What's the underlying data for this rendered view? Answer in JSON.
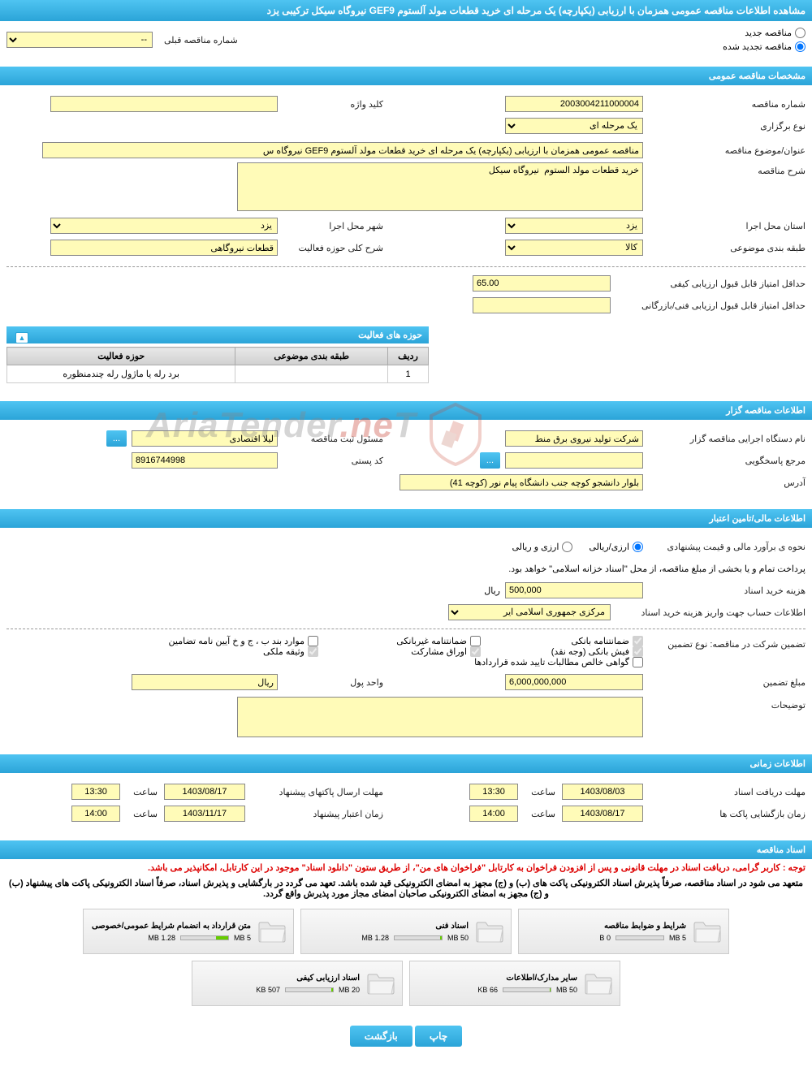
{
  "page_title": "مشاهده اطلاعات مناقصه عمومی همزمان با ارزیابی (یکپارچه) یک مرحله ای خرید قطعات مولد آلستوم GEF9 نیروگاه سیکل ترکیبی یزد",
  "top": {
    "radio_new": "مناقصه جدید",
    "radio_renewed": "مناقصه تجدید شده",
    "prev_number_label": "شماره مناقصه قبلی",
    "prev_number_value": "--"
  },
  "sections": {
    "general": "مشخصات مناقصه عمومی",
    "activities": "حوزه های فعالیت",
    "tenderer": "اطلاعات مناقصه گزار",
    "financial": "اطلاعات مالی/تامین اعتبار",
    "timing": "اطلاعات زمانی",
    "documents": "اسناد مناقصه"
  },
  "general": {
    "tender_number_label": "شماره مناقصه",
    "tender_number": "2003004211000004",
    "holding_type_label": "نوع برگزاری",
    "holding_type": "یک مرحله ای",
    "keyword_label": "کلید واژه",
    "keyword": "",
    "subject_label": "عنوان/موضوع مناقصه",
    "subject": "مناقصه عمومی همزمان با ارزیابی (یکپارچه) یک مرحله ای خرید قطعات مولد آلستوم GEF9 نیروگاه س",
    "description_label": "شرح مناقصه",
    "description": "خرید قطعات مولد الستوم  نیروگاه سیکل",
    "province_label": "استان محل اجرا",
    "province": "یزد",
    "city_label": "شهر محل اجرا",
    "city": "یزد",
    "category_label": "طبقه بندی موضوعی",
    "category": "کالا",
    "activity_scope_label": "شرح کلی حوزه فعالیت",
    "activity_scope": "قطعات نیروگاهی",
    "min_quality_label": "حداقل امتیاز قابل قبول ارزیابی کیفی",
    "min_quality": "65.00",
    "min_technical_label": "حداقل امتیاز قابل قبول ارزیابی فنی/بازرگانی",
    "min_technical": ""
  },
  "activities_table": {
    "col_row": "ردیف",
    "col_category": "طبقه بندی موضوعی",
    "col_scope": "حوزه فعالیت",
    "rows": [
      {
        "n": "1",
        "category": "",
        "scope": "برد رله یا ماژول رله چندمنظوره"
      }
    ]
  },
  "tenderer": {
    "executive_label": "نام دستگاه اجرایی مناقصه گزار",
    "executive": "شرکت تولید نیروی برق منط",
    "registrar_label": "مسئول ثبت مناقصه",
    "registrar": "لیلا اقتصادی",
    "response_ref_label": "مرجع پاسخگویی",
    "response_ref": "",
    "postal_label": "کد پستی",
    "postal": "8916744998",
    "ellipsis": "...",
    "address_label": "آدرس",
    "address": "بلوار دانشجو کوچه جنب دانشگاه پیام نور (کوچه 41)"
  },
  "financial": {
    "estimate_label": "نحوه ی برآورد مالی و قیمت پیشنهادی",
    "opt_rial": "ارزی/ریالی",
    "opt_arz": "ارزی و ریالی",
    "payment_note": "پرداخت تمام و یا بخشی از مبلغ مناقصه، از محل \"اسناد خزانه اسلامی\" خواهد بود.",
    "doc_price_label": "هزینه خرید اسناد",
    "doc_price": "500,000",
    "doc_price_unit": "ریال",
    "bank_info_label": "اطلاعات حساب جهت واریز هزینه خرید اسناد",
    "bank_info": "مرکزی جمهوری اسلامی ایر",
    "guarantee_type_label": "تضمین شرکت در مناقصه:   نوع تضمین",
    "cb_bank_guarantee": "ضمانتنامه بانکی",
    "cb_nonbank_guarantee": "ضمانتنامه غیربانکی",
    "cb_regulation": "موارد بند ب ، ج و خ آیین نامه تضامین",
    "cb_bank_slip": "فیش بانکی (وجه نقد)",
    "cb_bonds": "اوراق مشارکت",
    "cb_property": "وثیقه ملکی",
    "cb_contract": "گواهی خالص مطالبات تایید شده قراردادها",
    "guarantee_amount_label": "مبلغ تضمین",
    "guarantee_amount": "6,000,000,000",
    "currency_unit_label": "واحد پول",
    "currency_unit": "ریال",
    "notes_label": "توضیحات",
    "notes": ""
  },
  "timing": {
    "doc_deadline_label": "مهلت دریافت اسناد",
    "doc_deadline_date": "1403/08/03",
    "doc_deadline_time": "13:30",
    "time_label": "ساعت",
    "submit_deadline_label": "مهلت ارسال پاکتهای پیشنهاد",
    "submit_deadline_date": "1403/08/17",
    "submit_deadline_time": "13:30",
    "opening_label": "زمان بازگشایی پاکت ها",
    "opening_date": "1403/08/17",
    "opening_time": "14:00",
    "validity_label": "زمان اعتبار پیشنهاد",
    "validity_date": "1403/11/17",
    "validity_time": "14:00"
  },
  "documents": {
    "notice1": "توجه : کاربر گرامی، دریافت اسناد در مهلت قانونی و پس از افزودن فراخوان به کارتابل \"فراخوان های من\"، از طریق ستون \"دانلود اسناد\" موجود در این کارتابل، امکانپذیر می باشد.",
    "notice2": "متعهد می شود در اسناد مناقصه، صرفاً پذیرش اسناد الکترونیکی پاکت های (ب) و (ج) مجهز به امضای الکترونیکی قید شده باشد. تعهد می گردد در بارگشایی و پذیرش اسناد، صرفاً اسناد الکترونیکی پاکت های پیشنهاد (ب) و (ج) مجهز به امضای الکترونیکی صاحبان امضای مجاز مورد پذیرش واقع گردد.",
    "files": [
      {
        "title": "شرایط و ضوابط مناقصه",
        "size": "0 B",
        "limit": "5 MB",
        "fill": 0
      },
      {
        "title": "اسناد فنی",
        "size": "1.28 MB",
        "limit": "50 MB",
        "fill": 4
      },
      {
        "title": "متن قرارداد به انضمام شرایط عمومی/خصوصی",
        "size": "1.28 MB",
        "limit": "5 MB",
        "fill": 26
      },
      {
        "title": "سایر مدارک/اطلاعات",
        "size": "66 KB",
        "limit": "50 MB",
        "fill": 2
      },
      {
        "title": "اسناد ارزیابی کیفی",
        "size": "507 KB",
        "limit": "20 MB",
        "fill": 3
      }
    ]
  },
  "footer": {
    "print": "چاپ",
    "back": "بازگشت"
  },
  "colors": {
    "header_grad_top": "#4fc4f2",
    "header_grad_bottom": "#2ba4d8",
    "input_bg": "#fffbb8",
    "notice_red": "#d00",
    "progress_fill": "#66cc00"
  }
}
